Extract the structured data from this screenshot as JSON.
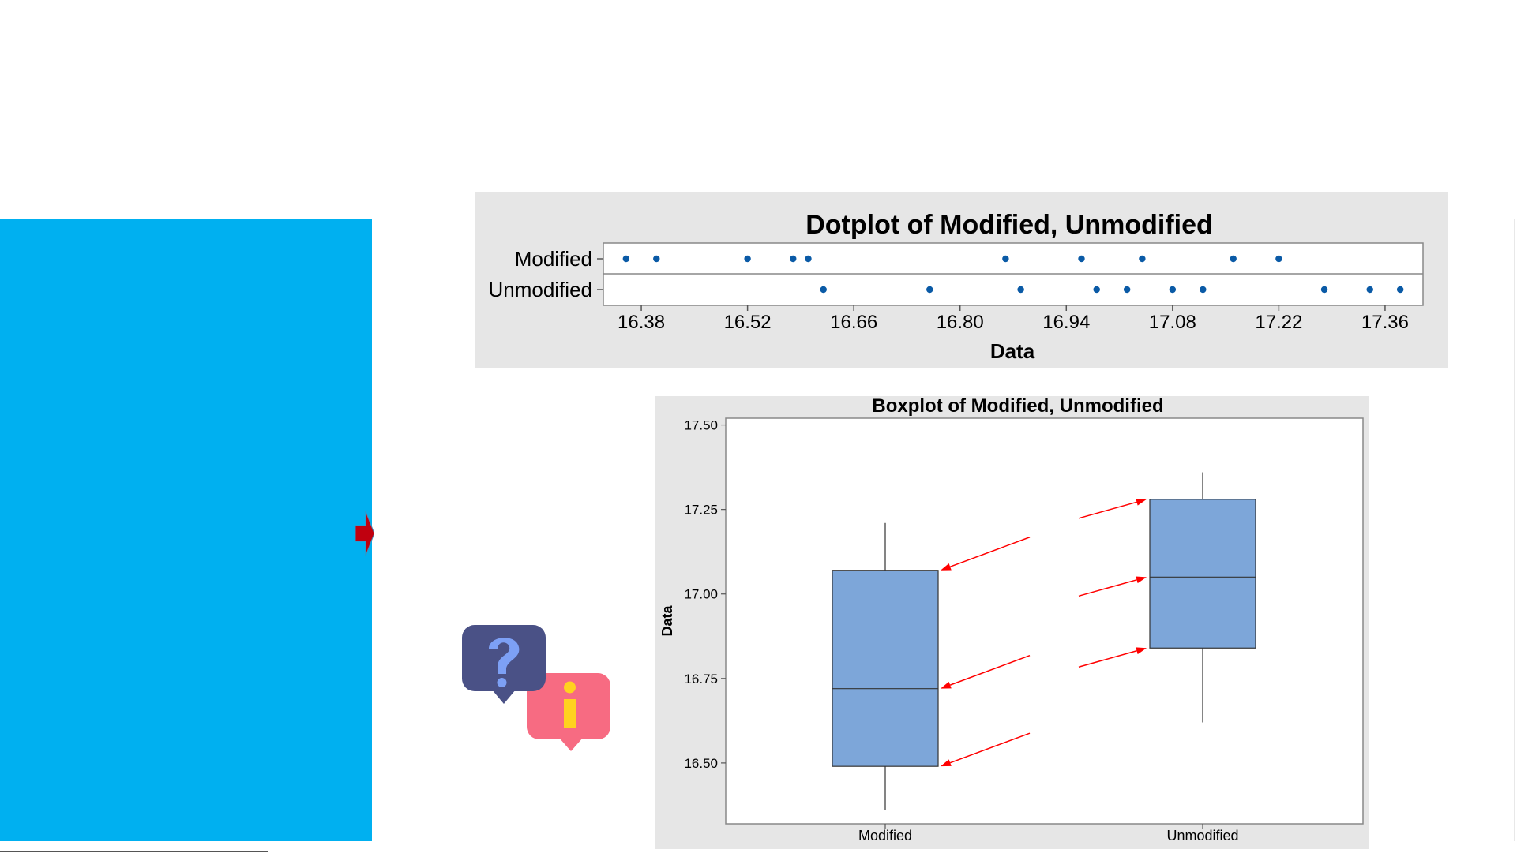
{
  "colors": {
    "accent_blue": "#00b0f0",
    "dot_blue": "#0a5aa6",
    "box_fill": "#7da6d9",
    "arrow_red": "#ff0000",
    "plot_bg": "#e6e6e6",
    "question_bubble": "#4a5186",
    "question_mark": "#7da0f5",
    "info_bubble": "#f76b82",
    "info_mark": "#ffd21f"
  },
  "icons": {
    "panel_arrow": "red-arrow-right-icon",
    "help": "question-info-bubbles-icon"
  },
  "chart_data": [
    {
      "type": "scatter",
      "subtype": "dotplot",
      "title": "Dotplot of Modified, Unmodified",
      "xlabel": "Data",
      "ylabel": "",
      "xlim": [
        16.33,
        17.41
      ],
      "xticks": [
        16.38,
        16.52,
        16.66,
        16.8,
        16.94,
        17.08,
        17.22,
        17.36
      ],
      "tick_labels": [
        "16.38",
        "16.52",
        "16.66",
        "16.80",
        "16.94",
        "17.08",
        "17.22",
        "17.36"
      ],
      "grid": false,
      "series": [
        {
          "name": "Modified",
          "values": [
            16.36,
            16.4,
            16.52,
            16.58,
            16.6,
            16.86,
            16.96,
            17.04,
            17.16,
            17.22
          ]
        },
        {
          "name": "Unmodified",
          "values": [
            16.62,
            16.76,
            16.88,
            16.98,
            17.02,
            17.08,
            17.12,
            17.28,
            17.34,
            17.38
          ]
        }
      ]
    },
    {
      "type": "box",
      "title": "Boxplot of Modified, Unmodified",
      "xlabel": "",
      "ylabel": "Data",
      "ylim": [
        16.32,
        17.52
      ],
      "yticks": [
        16.5,
        16.75,
        17.0,
        17.25,
        17.5
      ],
      "tick_labels": [
        "16.50",
        "16.75",
        "17.00",
        "17.25",
        "17.50"
      ],
      "categories": [
        "Modified",
        "Unmodified"
      ],
      "grid": false,
      "boxes": [
        {
          "category": "Modified",
          "min": 16.36,
          "q1": 16.49,
          "median": 16.72,
          "q3": 17.07,
          "max": 17.21
        },
        {
          "category": "Unmodified",
          "min": 16.62,
          "q1": 16.84,
          "median": 17.05,
          "q3": 17.28,
          "max": 17.36
        }
      ],
      "annotations": [
        {
          "type": "arrow",
          "points_to": "Modified Q3",
          "value": 17.07
        },
        {
          "type": "arrow",
          "points_to": "Modified median",
          "value": 16.72
        },
        {
          "type": "arrow",
          "points_to": "Modified Q1",
          "value": 16.49
        },
        {
          "type": "arrow",
          "points_to": "Unmodified Q3",
          "value": 17.28
        },
        {
          "type": "arrow",
          "points_to": "Unmodified median",
          "value": 17.05
        },
        {
          "type": "arrow",
          "points_to": "Unmodified Q1",
          "value": 16.84
        }
      ]
    }
  ]
}
